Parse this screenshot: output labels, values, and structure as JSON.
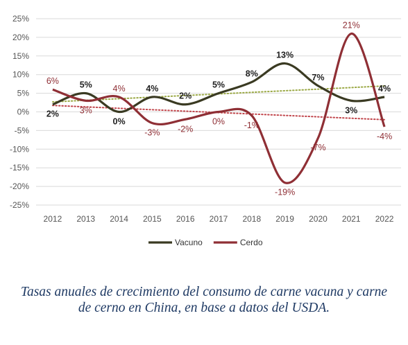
{
  "chart_data": {
    "type": "line",
    "categories": [
      "2012",
      "2013",
      "2014",
      "2015",
      "2016",
      "2017",
      "2018",
      "2019",
      "2020",
      "2021",
      "2022"
    ],
    "y_ticks": [
      "25%",
      "20%",
      "15%",
      "10%",
      "5%",
      "0%",
      "-5%",
      "-10%",
      "-15%",
      "-20%",
      "-25%"
    ],
    "ylim": [
      -25,
      25
    ],
    "grid": true,
    "legend_position": "bottom",
    "series": [
      {
        "name": "Vacuno",
        "color": "#3a3a22",
        "values": [
          2,
          5,
          0,
          4,
          2,
          5,
          8,
          13,
          7,
          3,
          4
        ],
        "labels": [
          "2%",
          "5%",
          "0%",
          "4%",
          "2%",
          "5%",
          "8%",
          "13%",
          "7%",
          "3%",
          "4%"
        ],
        "trend_color": "#9aa844"
      },
      {
        "name": "Cerdo",
        "color": "#8f2f35",
        "values": [
          6,
          3,
          4,
          -3,
          -2,
          0,
          -1,
          -19,
          -7,
          21,
          -4
        ],
        "labels": [
          "6%",
          "3%",
          "4%",
          "-3%",
          "-2%",
          "0%",
          "-1%",
          "-19%",
          "-7%",
          "21%",
          "-4%"
        ],
        "trend_color": "#c0444a"
      }
    ]
  },
  "caption": "Tasas anuales de crecimiento del consumo de carne vacuna y carne de cerno en China, en base a datos del USDA."
}
